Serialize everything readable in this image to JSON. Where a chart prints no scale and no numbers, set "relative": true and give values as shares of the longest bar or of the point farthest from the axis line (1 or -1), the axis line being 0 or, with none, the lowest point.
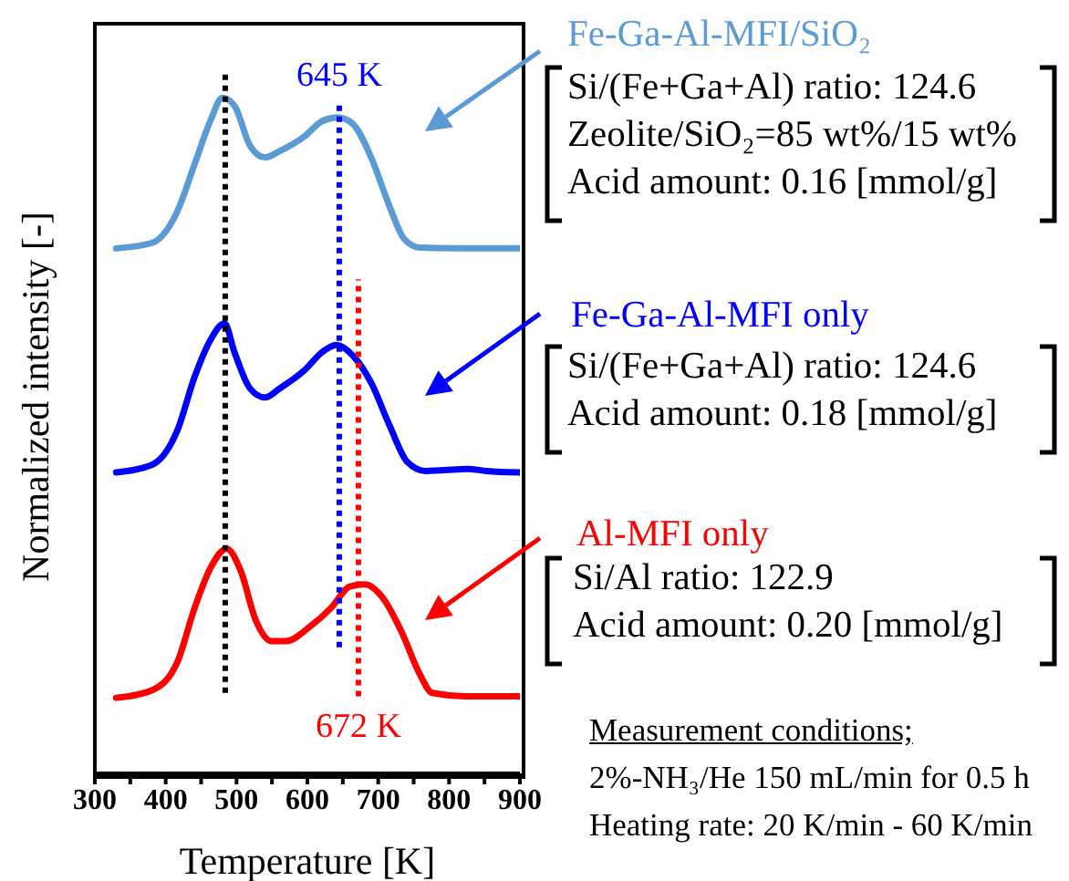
{
  "chart_data": {
    "type": "line",
    "relative": true,
    "xlabel": "Temperature [K]",
    "ylabel": "Normalized intensity [-]",
    "xlim": [
      300,
      900
    ],
    "xticks": [
      300,
      {
        "value": 350,
        "label": null
      },
      400,
      {
        "value": 450,
        "label": null
      },
      500,
      {
        "value": 550,
        "label": null
      },
      600,
      {
        "value": 650,
        "label": null
      },
      700,
      {
        "value": 750,
        "label": null
      },
      800,
      {
        "value": 850,
        "label": null
      },
      900
    ],
    "legend": false,
    "grid": false,
    "marker": "none",
    "series": [
      {
        "name": "Fe-Ga-Al-MFI/SiO₂",
        "color": "#5b9bd5",
        "line_style": "solid",
        "x": [
          330,
          381,
          416,
          441,
          463,
          480,
          497,
          519,
          540,
          561,
          596,
          621,
          643,
          664,
          690,
          716,
          737,
          759,
          810,
          900
        ],
        "values": [
          0.75,
          0.758,
          0.802,
          0.871,
          0.932,
          0.965,
          0.954,
          0.897,
          0.88,
          0.889,
          0.91,
          0.932,
          0.937,
          0.928,
          0.88,
          0.81,
          0.763,
          0.751,
          0.75,
          0.75
        ]
      },
      {
        "name": "Fe-Ga-Al-MFI only",
        "color": "#0000ff",
        "line_style": "solid",
        "x": [
          330,
          381,
          416,
          441,
          463,
          483,
          497,
          519,
          540,
          561,
          596,
          621,
          641,
          664,
          690,
          716,
          741,
          767,
          827,
          853,
          900
        ],
        "values": [
          0.43,
          0.441,
          0.489,
          0.567,
          0.619,
          0.643,
          0.602,
          0.55,
          0.537,
          0.55,
          0.576,
          0.602,
          0.612,
          0.597,
          0.558,
          0.497,
          0.445,
          0.432,
          0.435,
          0.432,
          0.43
        ]
      },
      {
        "name": "Al-MFI only",
        "color": "#ff0000",
        "line_style": "solid",
        "x": [
          330,
          381,
          416,
          441,
          463,
          486,
          506,
          527,
          549,
          570,
          604,
          634,
          660,
          681,
          707,
          733,
          759,
          776,
          827,
          900
        ],
        "values": [
          0.108,
          0.119,
          0.158,
          0.237,
          0.293,
          0.321,
          0.289,
          0.219,
          0.189,
          0.189,
          0.21,
          0.237,
          0.267,
          0.27,
          0.25,
          0.202,
          0.141,
          0.115,
          0.11,
          0.11
        ]
      },
      {
        "type": "line",
        "color": "#000000",
        "line_style": "dotted",
        "x": [
          484,
          484
        ],
        "values": [
          0.115,
          1.0
        ]
      },
      {
        "type": "line",
        "color": "#0000ff",
        "line_style": "dotted",
        "x": [
          645,
          645
        ],
        "values": [
          0.18,
          0.954
        ]
      },
      {
        "type": "line",
        "color": "#ff0000",
        "line_style": "dotted",
        "x": [
          672,
          672
        ],
        "values": [
          0.11,
          0.706
        ]
      }
    ],
    "annotations": [
      "645 K",
      "672 K",
      "Si/(Fe+Ga+Al) ratio: 124.6",
      "Zeolite/SiO₂=85 wt%/15 wt%",
      "Acid amount: 0.16 [mmol/g]",
      "Si/(Fe+Ga+Al) ratio: 124.6",
      "Acid amount: 0.18 [mmol/g]",
      "Si/Al ratio: 122.9",
      "Acid amount: 0.20 [mmol/g]",
      "Measurement conditions;",
      "2%-NH₃/He 150 mL/min for 0.5 h",
      "Heating rate: 20 K/min - 60 K/min"
    ]
  }
}
